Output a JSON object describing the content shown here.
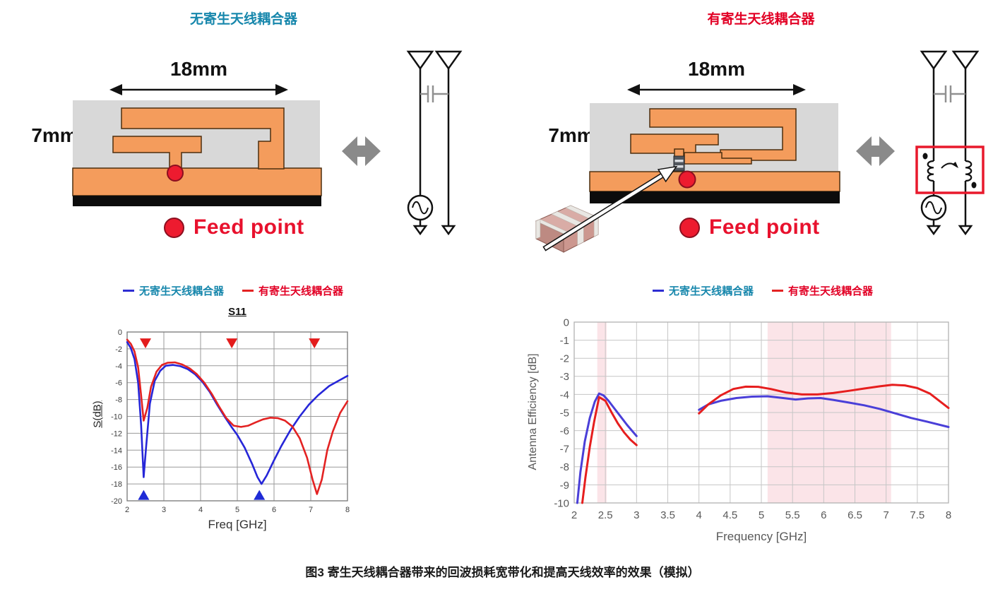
{
  "panels": {
    "left": {
      "title": "无寄生天线耦合器",
      "width_label": "18mm",
      "height_label": "7mm",
      "feed_label": "Feed point"
    },
    "right": {
      "title": "有寄生天线耦合器",
      "width_label": "18mm",
      "height_label": "7mm",
      "feed_label": "Feed point"
    }
  },
  "caption": "图3 寄生天线耦合器带来的回波损耗宽带化和提高天线效率的效果（模拟）",
  "colors": {
    "teal_text": "#1787ac",
    "red_text": "#e20025",
    "blue_curve": "#2626d8",
    "red_curve": "#e32222",
    "pcb_orange": "#f49c5c",
    "substrate_gray": "#d8d8d8",
    "feed_red": "#ed1b2f",
    "band_pink": "#f5b8c2"
  },
  "chart_data": [
    {
      "id": "s11",
      "type": "line",
      "title": "S11",
      "xlabel": "Freq [GHz]",
      "ylabel": "S(dB)",
      "xlim": [
        2,
        8
      ],
      "ylim": [
        -20,
        0
      ],
      "xticks": [
        2,
        3,
        4,
        5,
        6,
        7,
        8
      ],
      "yticks": [
        0,
        -2,
        -4,
        -6,
        -8,
        -10,
        -12,
        -14,
        -16,
        -18,
        -20
      ],
      "grid": true,
      "legend": [
        {
          "label": "无寄生天线耦合器",
          "dash_color": "#2d2dd2",
          "text_color": "#1787ac"
        },
        {
          "label": "有寄生天线耦合器",
          "dash_color": "#e32222",
          "text_color": "#e20025"
        }
      ],
      "series": [
        {
          "name": "无寄生天线耦合器",
          "color": "#2626d8",
          "segments": [
            {
              "x": [
                2.0,
                2.1,
                2.2,
                2.3,
                2.38,
                2.45,
                2.52,
                2.62,
                2.75,
                2.9,
                3.05,
                3.25,
                3.45,
                3.65,
                3.85,
                4.05,
                4.25,
                4.45,
                4.65,
                4.85,
                5.0,
                5.2,
                5.4,
                5.55,
                5.66,
                5.8,
                6.0,
                6.2,
                6.45,
                6.7,
                6.95,
                7.2,
                7.5,
                7.75,
                8.0
              ],
              "y": [
                -1.2,
                -1.9,
                -3.2,
                -6.0,
                -11.0,
                -17.2,
                -13.5,
                -8.5,
                -5.8,
                -4.6,
                -4.0,
                -3.9,
                -4.05,
                -4.4,
                -5.0,
                -5.9,
                -7.1,
                -8.6,
                -10.0,
                -11.3,
                -12.2,
                -13.7,
                -15.6,
                -17.2,
                -18.0,
                -17.0,
                -15.2,
                -13.5,
                -11.6,
                -10.0,
                -8.6,
                -7.5,
                -6.4,
                -5.8,
                -5.2
              ]
            }
          ]
        },
        {
          "name": "有寄生天线耦合器",
          "color": "#e32222",
          "segments": [
            {
              "x": [
                2.0,
                2.1,
                2.2,
                2.3,
                2.38,
                2.45,
                2.55,
                2.65,
                2.8,
                2.95,
                3.1,
                3.3,
                3.5,
                3.7,
                3.9,
                4.1,
                4.3,
                4.5,
                4.7,
                4.9,
                5.1,
                5.3,
                5.5,
                5.7,
                5.9,
                6.1,
                6.3,
                6.5,
                6.7,
                6.9,
                7.05,
                7.17,
                7.3,
                7.45,
                7.6,
                7.8,
                8.0
              ],
              "y": [
                -0.9,
                -1.4,
                -2.3,
                -4.2,
                -7.5,
                -10.5,
                -9.0,
                -6.5,
                -4.7,
                -3.9,
                -3.65,
                -3.6,
                -3.85,
                -4.3,
                -5.0,
                -6.0,
                -7.3,
                -8.8,
                -10.2,
                -11.1,
                -11.25,
                -11.1,
                -10.7,
                -10.35,
                -10.15,
                -10.2,
                -10.5,
                -11.2,
                -12.6,
                -14.9,
                -17.5,
                -19.2,
                -17.5,
                -14.0,
                -11.8,
                -9.6,
                -8.2
              ]
            }
          ]
        }
      ],
      "annotations": {
        "down_triangles": {
          "color": "#e31c1c",
          "x": [
            2.5,
            4.85,
            7.1
          ],
          "y": -1.35
        },
        "up_triangles": {
          "color": "#1f2bd6",
          "x": [
            2.45,
            5.6
          ],
          "y": -19.3
        }
      }
    },
    {
      "id": "efficiency",
      "type": "line",
      "title": "",
      "xlabel": "Frequency [GHz]",
      "ylabel": "Antenna Efficiency [dB]",
      "xlim": [
        2,
        8
      ],
      "ylim": [
        -10,
        0
      ],
      "xticks": [
        2,
        2.5,
        3,
        3.5,
        4,
        4.5,
        5,
        5.5,
        6,
        6.5,
        7,
        7.5,
        8
      ],
      "yticks": [
        0,
        -1,
        -2,
        -3,
        -4,
        -5,
        -6,
        -7,
        -8,
        -9,
        -10
      ],
      "grid": true,
      "bands": {
        "color": "#f5b8c2",
        "opacity": 0.38,
        "ranges": [
          [
            2.37,
            2.52
          ],
          [
            5.1,
            7.08
          ]
        ]
      },
      "legend": [
        {
          "label": "无寄生天线耦合器",
          "dash_color": "#2d2dd2",
          "text_color": "#1787ac"
        },
        {
          "label": "有寄生天线耦合器",
          "dash_color": "#e32222",
          "text_color": "#e20025"
        }
      ],
      "series": [
        {
          "name": "无寄生天线耦合器",
          "color": "#4a3fd8",
          "segments": [
            {
              "x": [
                2.05,
                2.1,
                2.17,
                2.25,
                2.33,
                2.4,
                2.47,
                2.55,
                2.65,
                2.75,
                2.85,
                3.0
              ],
              "y": [
                -10,
                -8.3,
                -6.6,
                -5.3,
                -4.4,
                -3.95,
                -4.05,
                -4.35,
                -4.8,
                -5.25,
                -5.7,
                -6.3
              ]
            },
            {
              "x": [
                4.0,
                4.15,
                4.35,
                4.6,
                4.85,
                5.1,
                5.35,
                5.55,
                5.75,
                5.95,
                6.15,
                6.4,
                6.65,
                6.9,
                7.15,
                7.4,
                7.65,
                8.0
              ],
              "y": [
                -4.85,
                -4.55,
                -4.35,
                -4.2,
                -4.12,
                -4.1,
                -4.2,
                -4.28,
                -4.22,
                -4.2,
                -4.3,
                -4.45,
                -4.6,
                -4.8,
                -5.05,
                -5.3,
                -5.5,
                -5.8
              ]
            }
          ]
        },
        {
          "name": "有寄生天线耦合器",
          "color": "#e61e1e",
          "segments": [
            {
              "x": [
                2.13,
                2.18,
                2.25,
                2.32,
                2.4,
                2.5,
                2.6,
                2.7,
                2.8,
                2.9,
                3.0
              ],
              "y": [
                -10,
                -8.6,
                -6.9,
                -5.5,
                -4.15,
                -4.35,
                -5.0,
                -5.6,
                -6.1,
                -6.5,
                -6.8
              ]
            },
            {
              "x": [
                4.0,
                4.15,
                4.35,
                4.55,
                4.75,
                4.95,
                5.15,
                5.4,
                5.65,
                5.9,
                6.15,
                6.4,
                6.65,
                6.9,
                7.1,
                7.3,
                7.5,
                7.7,
                8.0
              ],
              "y": [
                -5.05,
                -4.55,
                -4.05,
                -3.7,
                -3.57,
                -3.58,
                -3.7,
                -3.9,
                -4.0,
                -4.0,
                -3.92,
                -3.8,
                -3.67,
                -3.55,
                -3.47,
                -3.5,
                -3.65,
                -3.95,
                -4.75
              ]
            }
          ]
        }
      ]
    }
  ]
}
